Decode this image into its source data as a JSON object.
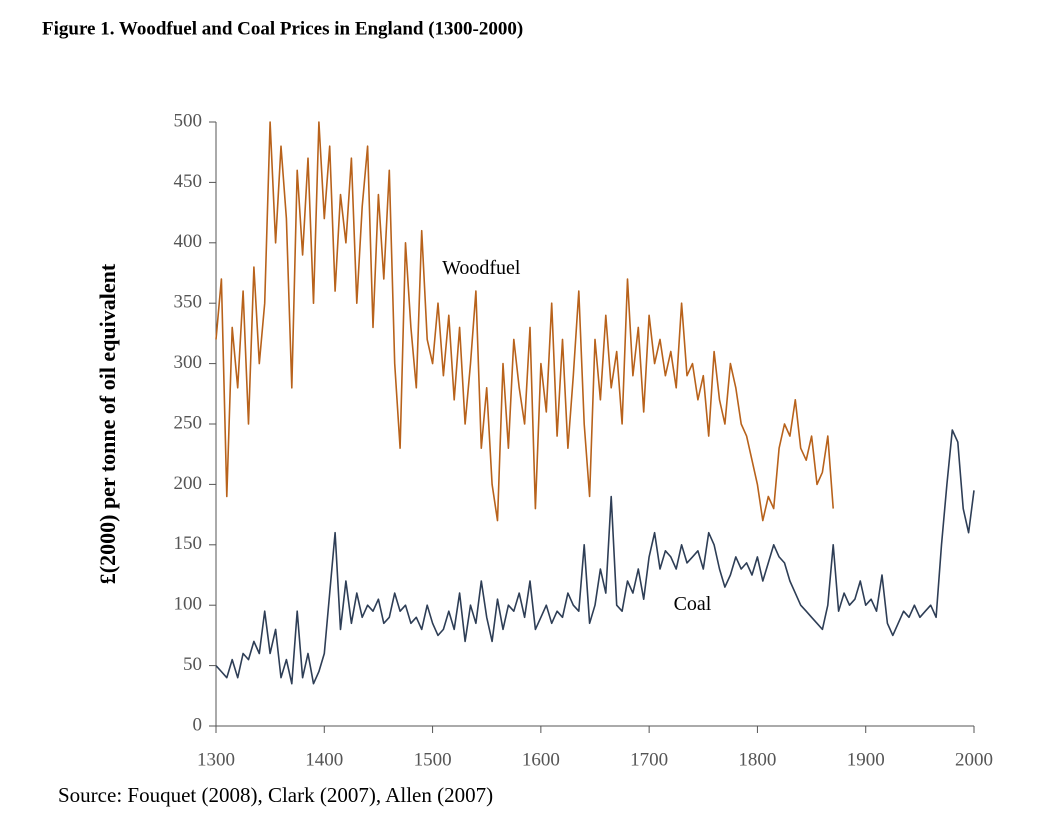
{
  "chart_data": {
    "type": "line",
    "title": "Figure 1. Woodfuel and Coal Prices in England (1300-2000)",
    "y_label": "£(2000) per tonne of oil equivalent",
    "source": "Source: Fouquet (2008), Clark (2007), Allen (2007)",
    "x": [
      1300,
      1305,
      1310,
      1315,
      1320,
      1325,
      1330,
      1335,
      1340,
      1345,
      1350,
      1355,
      1360,
      1365,
      1370,
      1375,
      1380,
      1385,
      1390,
      1395,
      1400,
      1405,
      1410,
      1415,
      1420,
      1425,
      1430,
      1435,
      1440,
      1445,
      1450,
      1455,
      1460,
      1465,
      1470,
      1475,
      1480,
      1485,
      1490,
      1495,
      1500,
      1505,
      1510,
      1515,
      1520,
      1525,
      1530,
      1535,
      1540,
      1545,
      1550,
      1555,
      1560,
      1565,
      1570,
      1575,
      1580,
      1585,
      1590,
      1595,
      1600,
      1605,
      1610,
      1615,
      1620,
      1625,
      1630,
      1635,
      1640,
      1645,
      1650,
      1655,
      1660,
      1665,
      1670,
      1675,
      1680,
      1685,
      1690,
      1695,
      1700,
      1705,
      1710,
      1715,
      1720,
      1725,
      1730,
      1735,
      1740,
      1745,
      1750,
      1755,
      1760,
      1765,
      1770,
      1775,
      1780,
      1785,
      1790,
      1795,
      1800,
      1805,
      1810,
      1815,
      1820,
      1825,
      1830,
      1835,
      1840,
      1845,
      1850,
      1855,
      1860,
      1865,
      1870,
      1875,
      1880,
      1885,
      1890,
      1895,
      1900,
      1905,
      1910,
      1915,
      1920,
      1925,
      1930,
      1935,
      1940,
      1945,
      1950,
      1955,
      1960,
      1965,
      1970,
      1975,
      1980,
      1985,
      1990,
      1995,
      2000
    ],
    "series": [
      {
        "name": "Woodfuel",
        "color": "#b8621b",
        "values": [
          320,
          370,
          190,
          330,
          280,
          360,
          250,
          380,
          300,
          350,
          500,
          400,
          480,
          420,
          280,
          460,
          390,
          470,
          350,
          500,
          420,
          480,
          360,
          440,
          400,
          470,
          350,
          430,
          480,
          330,
          440,
          370,
          460,
          300,
          230,
          400,
          330,
          280,
          410,
          320,
          300,
          350,
          290,
          340,
          270,
          330,
          250,
          300,
          360,
          230,
          280,
          200,
          170,
          300,
          230,
          320,
          280,
          250,
          330,
          180,
          300,
          260,
          350,
          240,
          320,
          230,
          290,
          360,
          250,
          190,
          320,
          270,
          340,
          280,
          310,
          250,
          370,
          290,
          330,
          260,
          340,
          300,
          320,
          290,
          310,
          280,
          350,
          290,
          300,
          270,
          290,
          240,
          310,
          270,
          250,
          300,
          280,
          250,
          240,
          220,
          200,
          170,
          190,
          180,
          230,
          250,
          240,
          270,
          230,
          220,
          240,
          200,
          210,
          240,
          180,
          null,
          null,
          null,
          null,
          null,
          null,
          null,
          null,
          null,
          null,
          null,
          null,
          null,
          null,
          null,
          null,
          null,
          null,
          null,
          null,
          null,
          null,
          null,
          null,
          null,
          null
        ]
      },
      {
        "name": "Coal",
        "color": "#2e3e56",
        "values": [
          50,
          45,
          40,
          55,
          40,
          60,
          55,
          70,
          60,
          95,
          60,
          80,
          40,
          55,
          35,
          95,
          40,
          60,
          35,
          45,
          60,
          110,
          160,
          80,
          120,
          85,
          110,
          90,
          100,
          95,
          105,
          85,
          90,
          110,
          95,
          100,
          85,
          90,
          80,
          100,
          85,
          75,
          80,
          95,
          80,
          110,
          70,
          100,
          85,
          120,
          90,
          70,
          105,
          80,
          100,
          95,
          110,
          90,
          120,
          80,
          90,
          100,
          85,
          95,
          90,
          110,
          100,
          95,
          150,
          85,
          100,
          130,
          110,
          190,
          100,
          95,
          120,
          110,
          130,
          105,
          140,
          160,
          130,
          145,
          140,
          130,
          150,
          135,
          140,
          145,
          130,
          160,
          150,
          130,
          115,
          125,
          140,
          130,
          135,
          125,
          140,
          120,
          135,
          150,
          140,
          135,
          120,
          110,
          100,
          95,
          90,
          85,
          80,
          100,
          150,
          95,
          110,
          100,
          105,
          120,
          100,
          105,
          95,
          125,
          85,
          75,
          85,
          95,
          90,
          100,
          90,
          95,
          100,
          90,
          150,
          200,
          245,
          235,
          180,
          160,
          195
        ]
      }
    ],
    "xlim": [
      1300,
      2000
    ],
    "xticks": [
      1300,
      1400,
      1500,
      1600,
      1700,
      1800,
      1900,
      2000
    ],
    "ylim": [
      0,
      500
    ],
    "yticks": [
      0,
      50,
      100,
      150,
      200,
      250,
      300,
      350,
      400,
      450,
      500
    ]
  }
}
